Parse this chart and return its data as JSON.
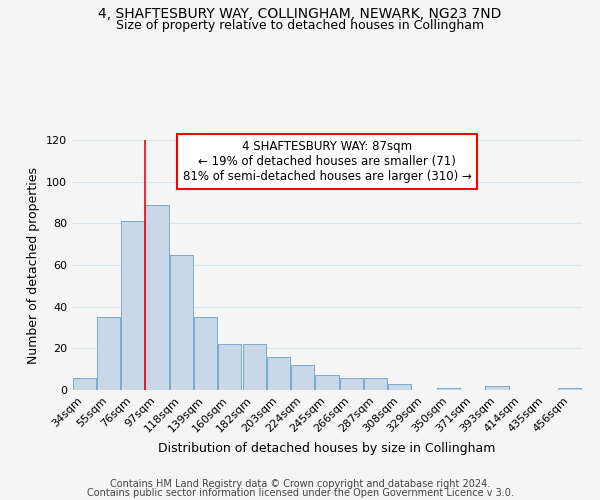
{
  "title": "4, SHAFTESBURY WAY, COLLINGHAM, NEWARK, NG23 7ND",
  "subtitle": "Size of property relative to detached houses in Collingham",
  "xlabel": "Distribution of detached houses by size in Collingham",
  "ylabel": "Number of detached properties",
  "bar_color": "#c8d8e8",
  "bar_edge_color": "#7aaac8",
  "categories": [
    "34sqm",
    "55sqm",
    "76sqm",
    "97sqm",
    "118sqm",
    "139sqm",
    "160sqm",
    "182sqm",
    "203sqm",
    "224sqm",
    "245sqm",
    "266sqm",
    "287sqm",
    "308sqm",
    "329sqm",
    "350sqm",
    "371sqm",
    "393sqm",
    "414sqm",
    "435sqm",
    "456sqm"
  ],
  "values": [
    6,
    35,
    81,
    89,
    65,
    35,
    22,
    22,
    16,
    12,
    7,
    6,
    6,
    3,
    0,
    1,
    0,
    2,
    0,
    0,
    1
  ],
  "ylim": [
    0,
    120
  ],
  "yticks": [
    0,
    20,
    40,
    60,
    80,
    100,
    120
  ],
  "property_line_label": "4 SHAFTESBURY WAY: 87sqm",
  "annotation_line1": "← 19% of detached houses are smaller (71)",
  "annotation_line2": "81% of semi-detached houses are larger (310) →",
  "footer_line1": "Contains HM Land Registry data © Crown copyright and database right 2024.",
  "footer_line2": "Contains public sector information licensed under the Open Government Licence v 3.0.",
  "background_color": "#f5f5f5",
  "grid_color": "#d8e4ee",
  "title_fontsize": 10,
  "subtitle_fontsize": 9,
  "axis_label_fontsize": 9,
  "tick_fontsize": 8,
  "annotation_fontsize": 8.5,
  "footer_fontsize": 7
}
